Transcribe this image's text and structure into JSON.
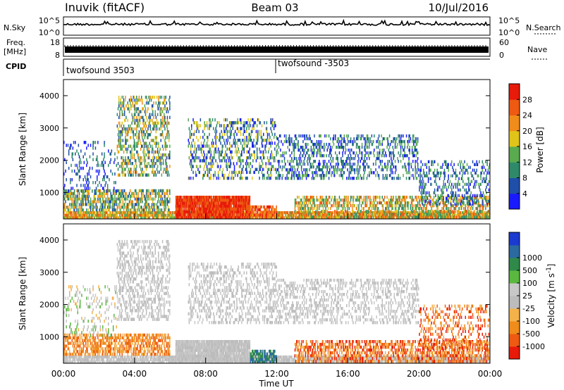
{
  "header": {
    "station": "Inuvik (fitACF)",
    "beam": "Beam 03",
    "date": "10/Jul/2016"
  },
  "top_panels": {
    "nsky_label": "N.Sky",
    "nsky_ticks": [
      "10^5",
      "10^0"
    ],
    "nsearch_label": "N.Search",
    "freq_label_1": "Freq.",
    "freq_label_2": "[MHz]",
    "freq_ticks": [
      "18",
      "8"
    ],
    "nave_label": "Nave",
    "nave_ticks": [
      "60",
      "0"
    ],
    "cpid_label": "CPID",
    "cpid_1": "twofsound 3503",
    "cpid_2": "twofsound -3503"
  },
  "colors": {
    "power": [
      "#1a1aff",
      "#1f4fa8",
      "#2f8a6a",
      "#5aaa4f",
      "#e0c41a",
      "#f08c1a",
      "#ee5a12",
      "#e81a0a"
    ],
    "velocity": [
      "#e81a0a",
      "#ee5a12",
      "#f08c1a",
      "#f4b24a",
      "#bcbcbc",
      "#c8c8c8",
      "#5ab840",
      "#2f8a4a",
      "#2a6aa0",
      "#1a3ad0"
    ]
  },
  "chart_data": [
    {
      "type": "heatmap",
      "name": "power",
      "ylabel": "Slant Range [km]",
      "yticks": [
        1000,
        2000,
        3000,
        4000
      ],
      "ylim": [
        180,
        4500
      ],
      "xlim": [
        0,
        24
      ],
      "colorbar_label": "Power [dB]",
      "colorbar_ticks": [
        "4",
        "8",
        "12",
        "16",
        "20",
        "24",
        "28"
      ],
      "colorbar_range": [
        0,
        30
      ]
    },
    {
      "type": "heatmap",
      "name": "velocity",
      "ylabel": "Slant Range [km]",
      "yticks": [
        1000,
        2000,
        3000,
        4000
      ],
      "ylim": [
        180,
        4500
      ],
      "xlim": [
        0,
        24
      ],
      "xticks": [
        "00:00",
        "04:00",
        "08:00",
        "12:00",
        "16:00",
        "20:00",
        "00:00"
      ],
      "xlabel": "Time UT",
      "colorbar_label": "Velocity [m s",
      "colorbar_label_sup": "-1",
      "colorbar_ticks": [
        "-1000",
        "-500",
        "-100",
        "-25",
        "25",
        "100",
        "500",
        "1000"
      ]
    }
  ]
}
